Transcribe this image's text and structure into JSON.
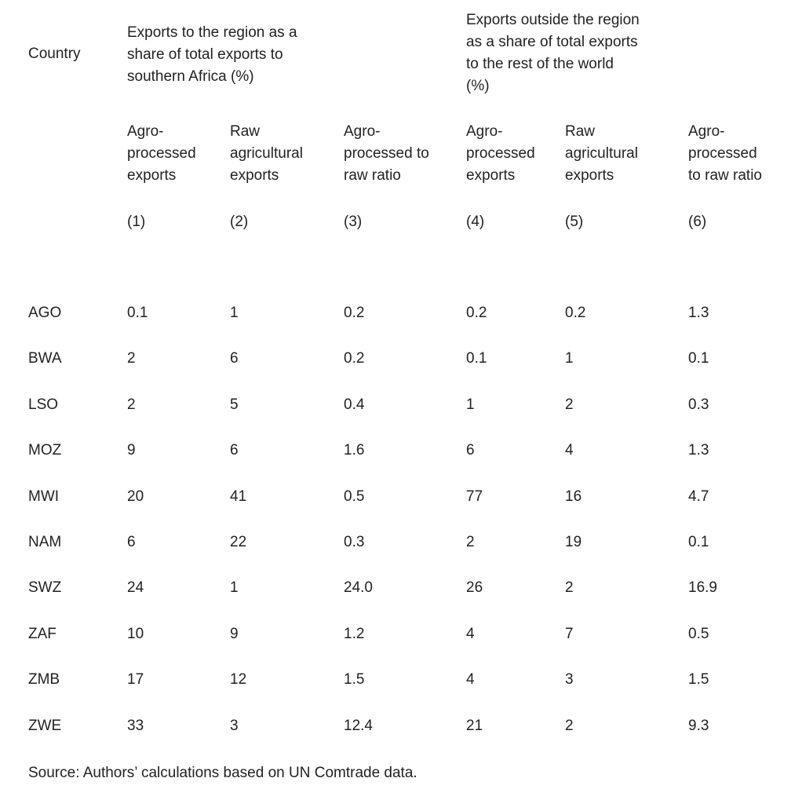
{
  "table": {
    "country_header": "Country",
    "group_headers": [
      "Exports to the region as a\nshare of total exports to\nsouthern Africa (%)",
      "Exports outside the region\nas a share of total exports\nto the rest of the world\n(%)"
    ],
    "column_headers": [
      "Agro-\nprocessed\nexports",
      "Raw\nagricultural\nexports",
      "Agro-\nprocessed to\nraw ratio",
      "Agro-\nprocessed\nexports",
      "Raw\nagricultural\nexports",
      "Agro-\nprocessed\nto raw ratio"
    ],
    "column_numbers": [
      "(1)",
      "(2)",
      "(3)",
      "(4)",
      "(5)",
      "(6)"
    ],
    "rows": [
      {
        "country": "AGO",
        "values": [
          "0.1",
          "1",
          "0.2",
          "0.2",
          "0.2",
          "1.3"
        ]
      },
      {
        "country": "BWA",
        "values": [
          "2",
          "6",
          "0.2",
          "0.1",
          "1",
          "0.1"
        ]
      },
      {
        "country": "LSO",
        "values": [
          "2",
          "5",
          "0.4",
          "1",
          "2",
          "0.3"
        ]
      },
      {
        "country": "MOZ",
        "values": [
          "9",
          "6",
          "1.6",
          "6",
          "4",
          "1.3"
        ]
      },
      {
        "country": "MWI",
        "values": [
          "20",
          "41",
          "0.5",
          "77",
          "16",
          "4.7"
        ]
      },
      {
        "country": "NAM",
        "values": [
          "6",
          "22",
          "0.3",
          "2",
          "19",
          "0.1"
        ]
      },
      {
        "country": "SWZ",
        "values": [
          "24",
          "1",
          "24.0",
          "26",
          "2",
          "16.9"
        ]
      },
      {
        "country": "ZAF",
        "values": [
          "10",
          "9",
          "1.2",
          "4",
          "7",
          "0.5"
        ]
      },
      {
        "country": "ZMB",
        "values": [
          "17",
          "12",
          "1.5",
          "4",
          "3",
          "1.5"
        ]
      },
      {
        "country": "ZWE",
        "values": [
          "33",
          "3",
          "12.4",
          "21",
          "2",
          "9.3"
        ]
      }
    ],
    "source": "Source: Authors’ calculations based on UN Comtrade data."
  }
}
